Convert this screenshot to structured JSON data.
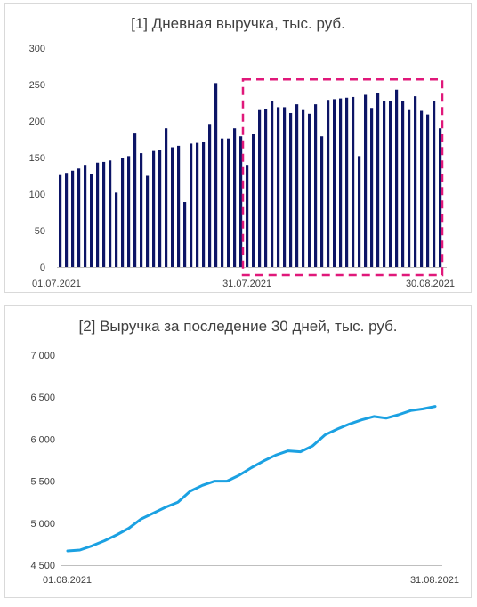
{
  "chart_data": [
    {
      "type": "bar",
      "title": "[1] Дневная выручка, тыс. руб.",
      "color": "#0d1566",
      "highlight_color": "#e0187a",
      "highlight_range": [
        "31.07.2021",
        "30.08.2021"
      ],
      "ylim": [
        0,
        300
      ],
      "yticks": [
        "0",
        "50",
        "100",
        "150",
        "200",
        "250",
        "300"
      ],
      "xtick_labels": [
        "01.07.2021",
        "31.07.2021",
        "30.08.2021"
      ],
      "values": [
        126,
        129,
        132,
        135,
        140,
        127,
        143,
        144,
        146,
        102,
        150,
        152,
        184,
        156,
        125,
        159,
        160,
        190,
        164,
        166,
        89,
        169,
        170,
        171,
        196,
        252,
        176,
        176,
        190,
        179,
        140,
        182,
        215,
        216,
        228,
        219,
        219,
        211,
        223,
        215,
        210,
        223,
        179,
        229,
        230,
        231,
        232,
        233,
        152,
        236,
        218,
        238,
        228,
        228,
        243,
        228,
        215,
        234,
        214,
        209,
        228,
        190
      ]
    },
    {
      "type": "line",
      "title": "[2] Выручка за последение 30 дней, тыс. руб.",
      "color": "#1ba1e2",
      "ylim": [
        4500,
        7000
      ],
      "yticks": [
        "4 500",
        "5 000",
        "5 500",
        "6 000",
        "6 500",
        "7 000"
      ],
      "xtick_labels": [
        "01.08.2021",
        "31.08.2021"
      ],
      "values": [
        4670,
        4680,
        4730,
        4790,
        4860,
        4940,
        5050,
        5120,
        5190,
        5250,
        5380,
        5450,
        5500,
        5500,
        5570,
        5660,
        5740,
        5810,
        5860,
        5850,
        5920,
        6050,
        6120,
        6180,
        6230,
        6270,
        6250,
        6290,
        6340,
        6360,
        6390
      ]
    }
  ]
}
